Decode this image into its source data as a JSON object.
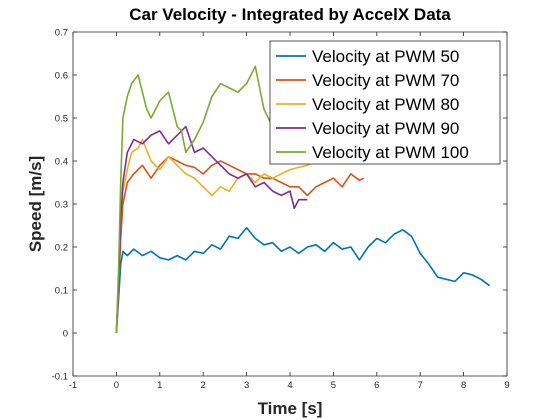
{
  "chart_data": {
    "type": "line",
    "title": "Car Velocity - Integrated by AccelX Data",
    "xlabel": "Time [s]",
    "ylabel": "Speed [m/s]",
    "xlim": [
      -1,
      9
    ],
    "ylim": [
      -0.1,
      0.7
    ],
    "xticks": [
      "-1",
      "0",
      "1",
      "2",
      "3",
      "4",
      "5",
      "6",
      "7",
      "8",
      "9"
    ],
    "yticks": [
      "-0.1",
      "0",
      "0.1",
      "0.2",
      "0.3",
      "0.4",
      "0.5",
      "0.6",
      "0.7"
    ],
    "grid": false,
    "legend_position": "top-right",
    "series": [
      {
        "name": "Velocity at PWM 50",
        "color": "#0072BD",
        "x": [
          0,
          0.05,
          0.1,
          0.15,
          0.25,
          0.4,
          0.6,
          0.8,
          1.0,
          1.2,
          1.4,
          1.6,
          1.8,
          2.0,
          2.2,
          2.4,
          2.6,
          2.8,
          3.0,
          3.2,
          3.4,
          3.6,
          3.8,
          4.0,
          4.2,
          4.4,
          4.6,
          4.8,
          5.0,
          5.2,
          5.4,
          5.6,
          5.8,
          6.0,
          6.2,
          6.4,
          6.6,
          6.8,
          7.0,
          7.2,
          7.4,
          7.6,
          7.8,
          8.0,
          8.2,
          8.4,
          8.6
        ],
        "values": [
          0,
          0.08,
          0.16,
          0.19,
          0.18,
          0.195,
          0.18,
          0.19,
          0.175,
          0.17,
          0.18,
          0.17,
          0.19,
          0.185,
          0.205,
          0.195,
          0.225,
          0.22,
          0.245,
          0.22,
          0.205,
          0.21,
          0.19,
          0.2,
          0.185,
          0.2,
          0.205,
          0.19,
          0.21,
          0.195,
          0.2,
          0.17,
          0.2,
          0.22,
          0.21,
          0.23,
          0.24,
          0.225,
          0.185,
          0.16,
          0.13,
          0.125,
          0.12,
          0.14,
          0.135,
          0.125,
          0.11
        ]
      },
      {
        "name": "Velocity at PWM 70",
        "color": "#D95319",
        "x": [
          0,
          0.05,
          0.1,
          0.15,
          0.25,
          0.4,
          0.6,
          0.8,
          1.0,
          1.2,
          1.4,
          1.6,
          1.8,
          2.0,
          2.2,
          2.4,
          2.6,
          2.8,
          3.0,
          3.2,
          3.4,
          3.6,
          3.8,
          4.0,
          4.2,
          4.4,
          4.6,
          4.8,
          5.0,
          5.2,
          5.4,
          5.6,
          5.7
        ],
        "values": [
          0,
          0.1,
          0.22,
          0.3,
          0.35,
          0.37,
          0.39,
          0.36,
          0.39,
          0.41,
          0.4,
          0.39,
          0.385,
          0.37,
          0.39,
          0.4,
          0.39,
          0.38,
          0.37,
          0.37,
          0.36,
          0.36,
          0.35,
          0.34,
          0.34,
          0.32,
          0.34,
          0.35,
          0.36,
          0.34,
          0.37,
          0.355,
          0.36
        ]
      },
      {
        "name": "Velocity at PWM 80",
        "color": "#EDB120",
        "x": [
          0,
          0.05,
          0.1,
          0.15,
          0.25,
          0.35,
          0.5,
          0.6,
          0.8,
          1.0,
          1.2,
          1.4,
          1.6,
          1.8,
          2.0,
          2.2,
          2.4,
          2.6,
          2.8,
          3.0,
          3.2,
          3.4,
          3.6,
          3.8,
          4.0,
          4.2,
          4.4,
          4.6,
          4.8,
          5.0
        ],
        "values": [
          0,
          0.12,
          0.26,
          0.33,
          0.38,
          0.42,
          0.43,
          0.45,
          0.4,
          0.38,
          0.41,
          0.39,
          0.37,
          0.36,
          0.34,
          0.32,
          0.34,
          0.33,
          0.36,
          0.37,
          0.35,
          0.37,
          0.36,
          0.37,
          0.38,
          0.385,
          0.39,
          0.4,
          0.41,
          0.42
        ]
      },
      {
        "name": "Velocity at PWM 90",
        "color": "#7E2F8E",
        "x": [
          0,
          0.05,
          0.1,
          0.15,
          0.25,
          0.4,
          0.6,
          0.8,
          1.0,
          1.2,
          1.4,
          1.6,
          1.8,
          2.0,
          2.2,
          2.4,
          2.6,
          2.8,
          3.0,
          3.2,
          3.4,
          3.6,
          3.8,
          4.0,
          4.1,
          4.2,
          4.4
        ],
        "values": [
          0,
          0.12,
          0.26,
          0.35,
          0.42,
          0.45,
          0.44,
          0.46,
          0.47,
          0.44,
          0.46,
          0.48,
          0.42,
          0.43,
          0.41,
          0.39,
          0.37,
          0.36,
          0.37,
          0.34,
          0.35,
          0.33,
          0.32,
          0.33,
          0.29,
          0.31,
          0.31
        ]
      },
      {
        "name": "Velocity at PWM 100",
        "color": "#77AC30",
        "x": [
          0,
          0.05,
          0.1,
          0.15,
          0.25,
          0.35,
          0.5,
          0.6,
          0.7,
          0.8,
          1.0,
          1.2,
          1.4,
          1.5,
          1.6,
          1.8,
          2.0,
          2.2,
          2.4,
          2.6,
          2.8,
          3.0,
          3.2,
          3.3,
          3.4,
          3.5,
          3.6,
          3.7,
          3.8
        ],
        "values": [
          0,
          0.15,
          0.35,
          0.5,
          0.55,
          0.58,
          0.6,
          0.56,
          0.52,
          0.5,
          0.54,
          0.56,
          0.48,
          0.47,
          0.42,
          0.45,
          0.49,
          0.55,
          0.58,
          0.57,
          0.56,
          0.58,
          0.62,
          0.57,
          0.52,
          0.5,
          0.48,
          0.47,
          0.47
        ]
      }
    ]
  }
}
